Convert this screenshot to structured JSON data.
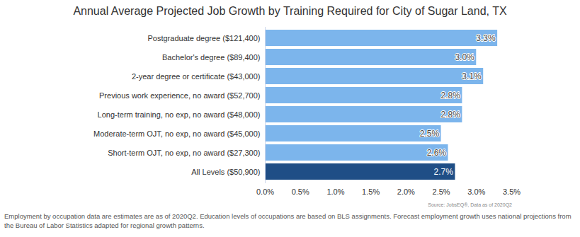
{
  "chart_data": {
    "type": "bar",
    "orientation": "horizontal",
    "title": "Annual Average Projected Job Growth by Training Required for City of Sugar Land, TX",
    "categories": [
      "Postgraduate degree ($121,400)",
      "Bachelor's degree ($89,400)",
      "2-year degree or certificate ($43,000)",
      "Previous work experience, no award ($52,700)",
      "Long-term training, no exp, no award ($48,000)",
      "Moderate-term OJT, no exp, no award ($45,000)",
      "Short-term OJT, no exp, no award ($27,300)",
      "All Levels ($50,900)"
    ],
    "values": [
      3.3,
      3.0,
      3.1,
      2.8,
      2.8,
      2.5,
      2.6,
      2.7
    ],
    "value_labels": [
      "3.3%",
      "3.0%",
      "3.1%",
      "2.8%",
      "2.8%",
      "2.5%",
      "2.6%",
      "2.7%"
    ],
    "colors": [
      "#7cb5ec",
      "#7cb5ec",
      "#7cb5ec",
      "#7cb5ec",
      "#7cb5ec",
      "#7cb5ec",
      "#7cb5ec",
      "#1f4e86"
    ],
    "data_labels": true,
    "grid": false,
    "xlim": [
      0,
      3.5
    ],
    "xticks": [
      {
        "value": 0,
        "label": "0.0%"
      },
      {
        "value": 0.5,
        "label": "0.5%"
      },
      {
        "value": 1,
        "label": "1.0%"
      },
      {
        "value": 1.5,
        "label": "1.5%"
      },
      {
        "value": 2,
        "label": "2.0%"
      },
      {
        "value": 2.5,
        "label": "2.5%"
      },
      {
        "value": 3,
        "label": "3.0%"
      },
      {
        "value": 3.5,
        "label": "3.5%"
      }
    ],
    "source": "Source: JobsEQ®, Data as of 2020Q2",
    "note": "Employment by occupation data are estimates are as of 2020Q2. Education levels of occupations are based on BLS assignments. Forecast employment growth uses national projections from the Bureau of Labor Statistics adapted for regional growth patterns."
  }
}
